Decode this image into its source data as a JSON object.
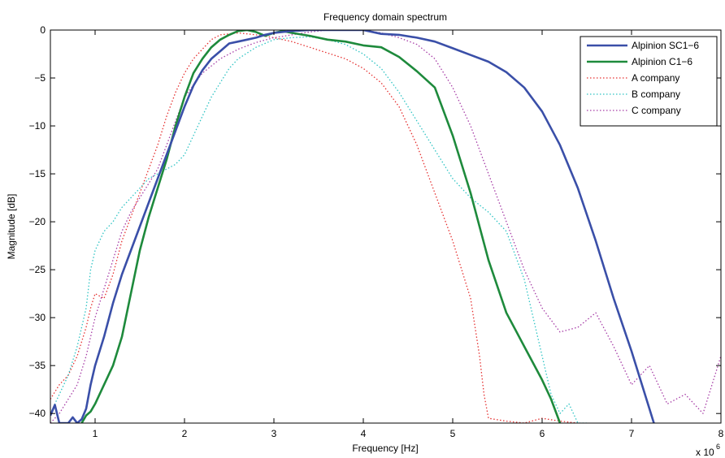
{
  "chart_data": {
    "type": "line",
    "title": "Frequency domain spectrum",
    "xlabel": "Frequency [Hz]",
    "ylabel": "Magnitude [dB]",
    "x_multiplier": "x 10",
    "x_multiplier_exp": "6",
    "xlim": [
      0.5,
      8
    ],
    "ylim": [
      -41,
      0
    ],
    "xticks": [
      1,
      2,
      3,
      4,
      5,
      6,
      7,
      8
    ],
    "yticks": [
      0,
      -5,
      -10,
      -15,
      -20,
      -25,
      -30,
      -35,
      -40
    ],
    "xtick_labels": [
      "1",
      "2",
      "3",
      "4",
      "5",
      "6",
      "7",
      "8"
    ],
    "ytick_labels": [
      "0",
      "−5",
      "−10",
      "−15",
      "−20",
      "−25",
      "−30",
      "−35",
      "−40"
    ],
    "grid": false,
    "legend_position": "top-right",
    "series": [
      {
        "name": "Alpinion SC1−6",
        "color": "#3A4FA8",
        "style": "solid",
        "x": [
          0.5,
          0.55,
          0.6,
          0.65,
          0.7,
          0.75,
          0.8,
          0.85,
          0.9,
          0.95,
          1.0,
          1.05,
          1.1,
          1.2,
          1.3,
          1.4,
          1.5,
          1.6,
          1.7,
          1.8,
          1.9,
          2.0,
          2.1,
          2.2,
          2.3,
          2.4,
          2.5,
          2.6,
          2.7,
          2.8,
          2.9,
          3.0,
          3.2,
          3.4,
          3.6,
          3.8,
          4.0,
          4.2,
          4.4,
          4.6,
          4.8,
          5.0,
          5.2,
          5.4,
          5.6,
          5.8,
          6.0,
          6.2,
          6.4,
          6.6,
          6.8,
          7.0,
          7.1,
          7.2,
          7.25
        ],
        "values": [
          -40.2,
          -39.1,
          -41.0,
          -41.0,
          -41.0,
          -40.4,
          -41.0,
          -40.6,
          -39.5,
          -37.0,
          -35.0,
          -33.5,
          -32.0,
          -28.5,
          -25.5,
          -23.0,
          -20.5,
          -18.0,
          -15.5,
          -13.0,
          -10.5,
          -8.0,
          -5.8,
          -4.2,
          -3.0,
          -2.2,
          -1.4,
          -1.2,
          -1.0,
          -0.8,
          -0.5,
          -0.3,
          -0.1,
          0.0,
          0.0,
          0.0,
          0.0,
          -0.4,
          -0.5,
          -0.8,
          -1.2,
          -1.9,
          -2.6,
          -3.3,
          -4.4,
          -6.0,
          -8.5,
          -12.0,
          -16.5,
          -22.0,
          -28.0,
          -33.5,
          -36.5,
          -39.5,
          -41.0
        ]
      },
      {
        "name": "Alpinion C1−6",
        "color": "#1E8A3C",
        "style": "solid",
        "x": [
          0.85,
          0.9,
          0.95,
          1.0,
          1.1,
          1.2,
          1.3,
          1.4,
          1.5,
          1.6,
          1.7,
          1.8,
          1.9,
          2.0,
          2.1,
          2.2,
          2.3,
          2.4,
          2.5,
          2.6,
          2.7,
          2.8,
          2.9,
          3.0,
          3.1,
          3.2,
          3.4,
          3.6,
          3.8,
          4.0,
          4.2,
          4.4,
          4.6,
          4.8,
          5.0,
          5.2,
          5.4,
          5.6,
          5.8,
          6.0,
          6.1,
          6.2
        ],
        "values": [
          -41.0,
          -40.2,
          -39.8,
          -39.0,
          -37.0,
          -35.0,
          -32.0,
          -27.5,
          -23.0,
          -19.5,
          -16.5,
          -13.5,
          -10.0,
          -7.0,
          -4.5,
          -3.0,
          -1.8,
          -1.0,
          -0.5,
          -0.1,
          0.0,
          -0.2,
          -0.6,
          -0.3,
          -0.1,
          -0.3,
          -0.6,
          -1.0,
          -1.2,
          -1.6,
          -1.8,
          -2.8,
          -4.3,
          -6.0,
          -11.0,
          -17.0,
          -24.0,
          -29.5,
          -33.0,
          -36.5,
          -38.5,
          -41.0
        ]
      },
      {
        "name": "A company",
        "color": "#E53030",
        "style": "dotted",
        "x": [
          0.5,
          0.6,
          0.7,
          0.8,
          0.9,
          0.95,
          1.0,
          1.1,
          1.2,
          1.3,
          1.4,
          1.5,
          1.6,
          1.7,
          1.8,
          1.9,
          2.0,
          2.1,
          2.2,
          2.3,
          2.4,
          2.6,
          2.8,
          3.0,
          3.2,
          3.4,
          3.6,
          3.8,
          4.0,
          4.2,
          4.4,
          4.6,
          4.8,
          5.0,
          5.1,
          5.2,
          5.3,
          5.35,
          5.4,
          5.6,
          5.8,
          6.0,
          6.2,
          6.4
        ],
        "values": [
          -38.5,
          -37.0,
          -36.0,
          -34.0,
          -31.0,
          -29.0,
          -27.5,
          -28.0,
          -25.5,
          -22.0,
          -19.5,
          -17.0,
          -14.5,
          -12.0,
          -9.0,
          -6.5,
          -4.5,
          -3.0,
          -2.0,
          -1.0,
          -0.5,
          -0.3,
          -0.5,
          -0.8,
          -1.2,
          -1.8,
          -2.4,
          -3.0,
          -4.0,
          -5.5,
          -8.0,
          -12.0,
          -17.0,
          -22.0,
          -25.0,
          -28.0,
          -34.0,
          -38.0,
          -40.5,
          -40.8,
          -41.0,
          -40.5,
          -40.8,
          -41.0
        ]
      },
      {
        "name": "B company",
        "color": "#2EC4C4",
        "style": "dotted",
        "x": [
          0.5,
          0.6,
          0.7,
          0.8,
          0.9,
          0.95,
          1.0,
          1.1,
          1.2,
          1.3,
          1.4,
          1.5,
          1.6,
          1.7,
          1.8,
          1.9,
          2.0,
          2.1,
          2.2,
          2.3,
          2.4,
          2.5,
          2.6,
          2.8,
          3.0,
          3.2,
          3.4,
          3.6,
          3.8,
          4.0,
          4.2,
          4.4,
          4.6,
          4.8,
          5.0,
          5.2,
          5.4,
          5.6,
          5.8,
          6.0,
          6.1,
          6.2,
          6.3,
          6.4,
          6.5
        ],
        "values": [
          -40.0,
          -38.0,
          -36.0,
          -33.0,
          -29.0,
          -25.0,
          -23.0,
          -21.0,
          -20.0,
          -18.5,
          -17.5,
          -16.5,
          -15.5,
          -15.0,
          -14.5,
          -14.0,
          -13.0,
          -11.0,
          -9.0,
          -7.0,
          -5.5,
          -4.0,
          -3.0,
          -1.8,
          -1.0,
          -0.8,
          -0.7,
          -1.0,
          -1.5,
          -2.5,
          -4.0,
          -6.5,
          -9.5,
          -12.5,
          -15.5,
          -17.5,
          -19.0,
          -21.0,
          -26.0,
          -34.0,
          -38.0,
          -40.0,
          -39.0,
          -41.0,
          -41.0
        ]
      },
      {
        "name": "C company",
        "color": "#A63CA6",
        "style": "dotted",
        "x": [
          0.5,
          0.6,
          0.7,
          0.8,
          0.9,
          1.0,
          1.1,
          1.2,
          1.3,
          1.4,
          1.5,
          1.6,
          1.7,
          1.8,
          1.9,
          2.0,
          2.2,
          2.4,
          2.6,
          2.8,
          3.0,
          3.2,
          3.4,
          3.6,
          3.8,
          4.0,
          4.2,
          4.4,
          4.6,
          4.8,
          5.0,
          5.2,
          5.4,
          5.6,
          5.8,
          6.0,
          6.2,
          6.4,
          6.6,
          6.8,
          7.0,
          7.2,
          7.4,
          7.6,
          7.8,
          8.0
        ],
        "values": [
          -41.0,
          -40.0,
          -38.5,
          -37.0,
          -34.0,
          -30.0,
          -27.0,
          -24.0,
          -21.0,
          -19.0,
          -17.5,
          -16.0,
          -14.5,
          -12.0,
          -9.5,
          -7.0,
          -4.5,
          -3.0,
          -2.0,
          -1.3,
          -0.8,
          -0.5,
          -0.2,
          0.0,
          0.0,
          0.0,
          -0.3,
          -0.8,
          -1.5,
          -3.0,
          -6.0,
          -10.0,
          -15.0,
          -20.0,
          -25.0,
          -29.0,
          -31.5,
          -31.0,
          -29.5,
          -33.0,
          -37.0,
          -35.0,
          -39.0,
          -38.0,
          -40.0,
          -34.0
        ]
      }
    ]
  }
}
